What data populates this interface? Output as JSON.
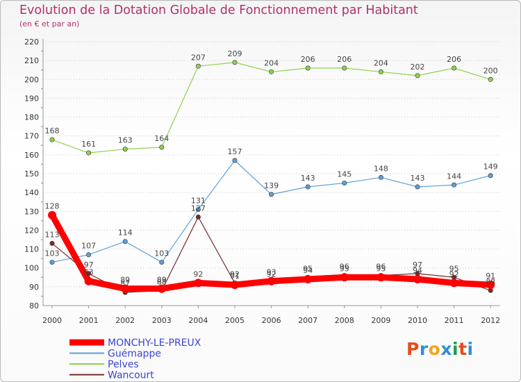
{
  "header": {
    "title": "Evolution de la Dotation Globale de Fonctionnement par Habitant",
    "subtitle": "(en € et par an)"
  },
  "brand": {
    "letters": [
      "P",
      "r",
      "o",
      "x",
      "i",
      "t",
      "i"
    ],
    "colors": [
      "#e84c1b",
      "#2f8fd6",
      "#f2a51a",
      "#2f8fd6",
      "#1c9c4a",
      "#e84c1b",
      "#2f8fd6"
    ]
  },
  "chart_data": {
    "type": "line",
    "categories": [
      "2000",
      "2001",
      "2002",
      "2003",
      "2004",
      "2005",
      "2006",
      "2007",
      "2008",
      "2009",
      "2010",
      "2011",
      "2012"
    ],
    "ylim": [
      80,
      220
    ],
    "yticks": [
      80,
      90,
      100,
      110,
      120,
      130,
      140,
      150,
      160,
      170,
      180,
      190,
      200,
      210,
      220
    ],
    "grid": "horizontal dotted",
    "legend": "bottom-left",
    "series": [
      {
        "name": "MONCHY-LE-PREUX",
        "color": "#ff0000",
        "width": 9,
        "values": [
          128,
          93,
          89,
          89,
          92,
          91,
          93,
          94,
          95,
          95,
          94,
          92,
          91
        ],
        "labels": [
          "128",
          "93",
          "89",
          "89",
          "92",
          "91",
          "93",
          "94",
          "95",
          "95",
          "94",
          "92",
          "91"
        ]
      },
      {
        "name": "Guémappe",
        "color": "#5e9fd6",
        "width": 1.2,
        "values": [
          103,
          107,
          114,
          103,
          131,
          157,
          139,
          143,
          145,
          148,
          143,
          144,
          149
        ],
        "labels": [
          "103",
          "107",
          "114",
          "103",
          "131",
          "157",
          "139",
          "143",
          "145",
          "148",
          "143",
          "144",
          "149"
        ]
      },
      {
        "name": "Pelves",
        "color": "#8fd14f",
        "width": 1.2,
        "values": [
          168,
          161,
          163,
          164,
          207,
          209,
          204,
          206,
          206,
          204,
          202,
          206,
          200
        ],
        "labels": [
          "168",
          "161",
          "163",
          "164",
          "207",
          "209",
          "204",
          "206",
          "206",
          "204",
          "202",
          "206",
          "200"
        ]
      },
      {
        "name": "Wancourt",
        "color": "#7a2a2a",
        "width": 1.2,
        "values": [
          113,
          97,
          87,
          88,
          127,
          92,
          92,
          95,
          96,
          96,
          97,
          95,
          88
        ],
        "labels": [
          "113",
          "97",
          "87",
          "88",
          "127",
          "92",
          "92",
          "95",
          "96",
          "96",
          "97",
          "95",
          "88"
        ]
      }
    ]
  }
}
